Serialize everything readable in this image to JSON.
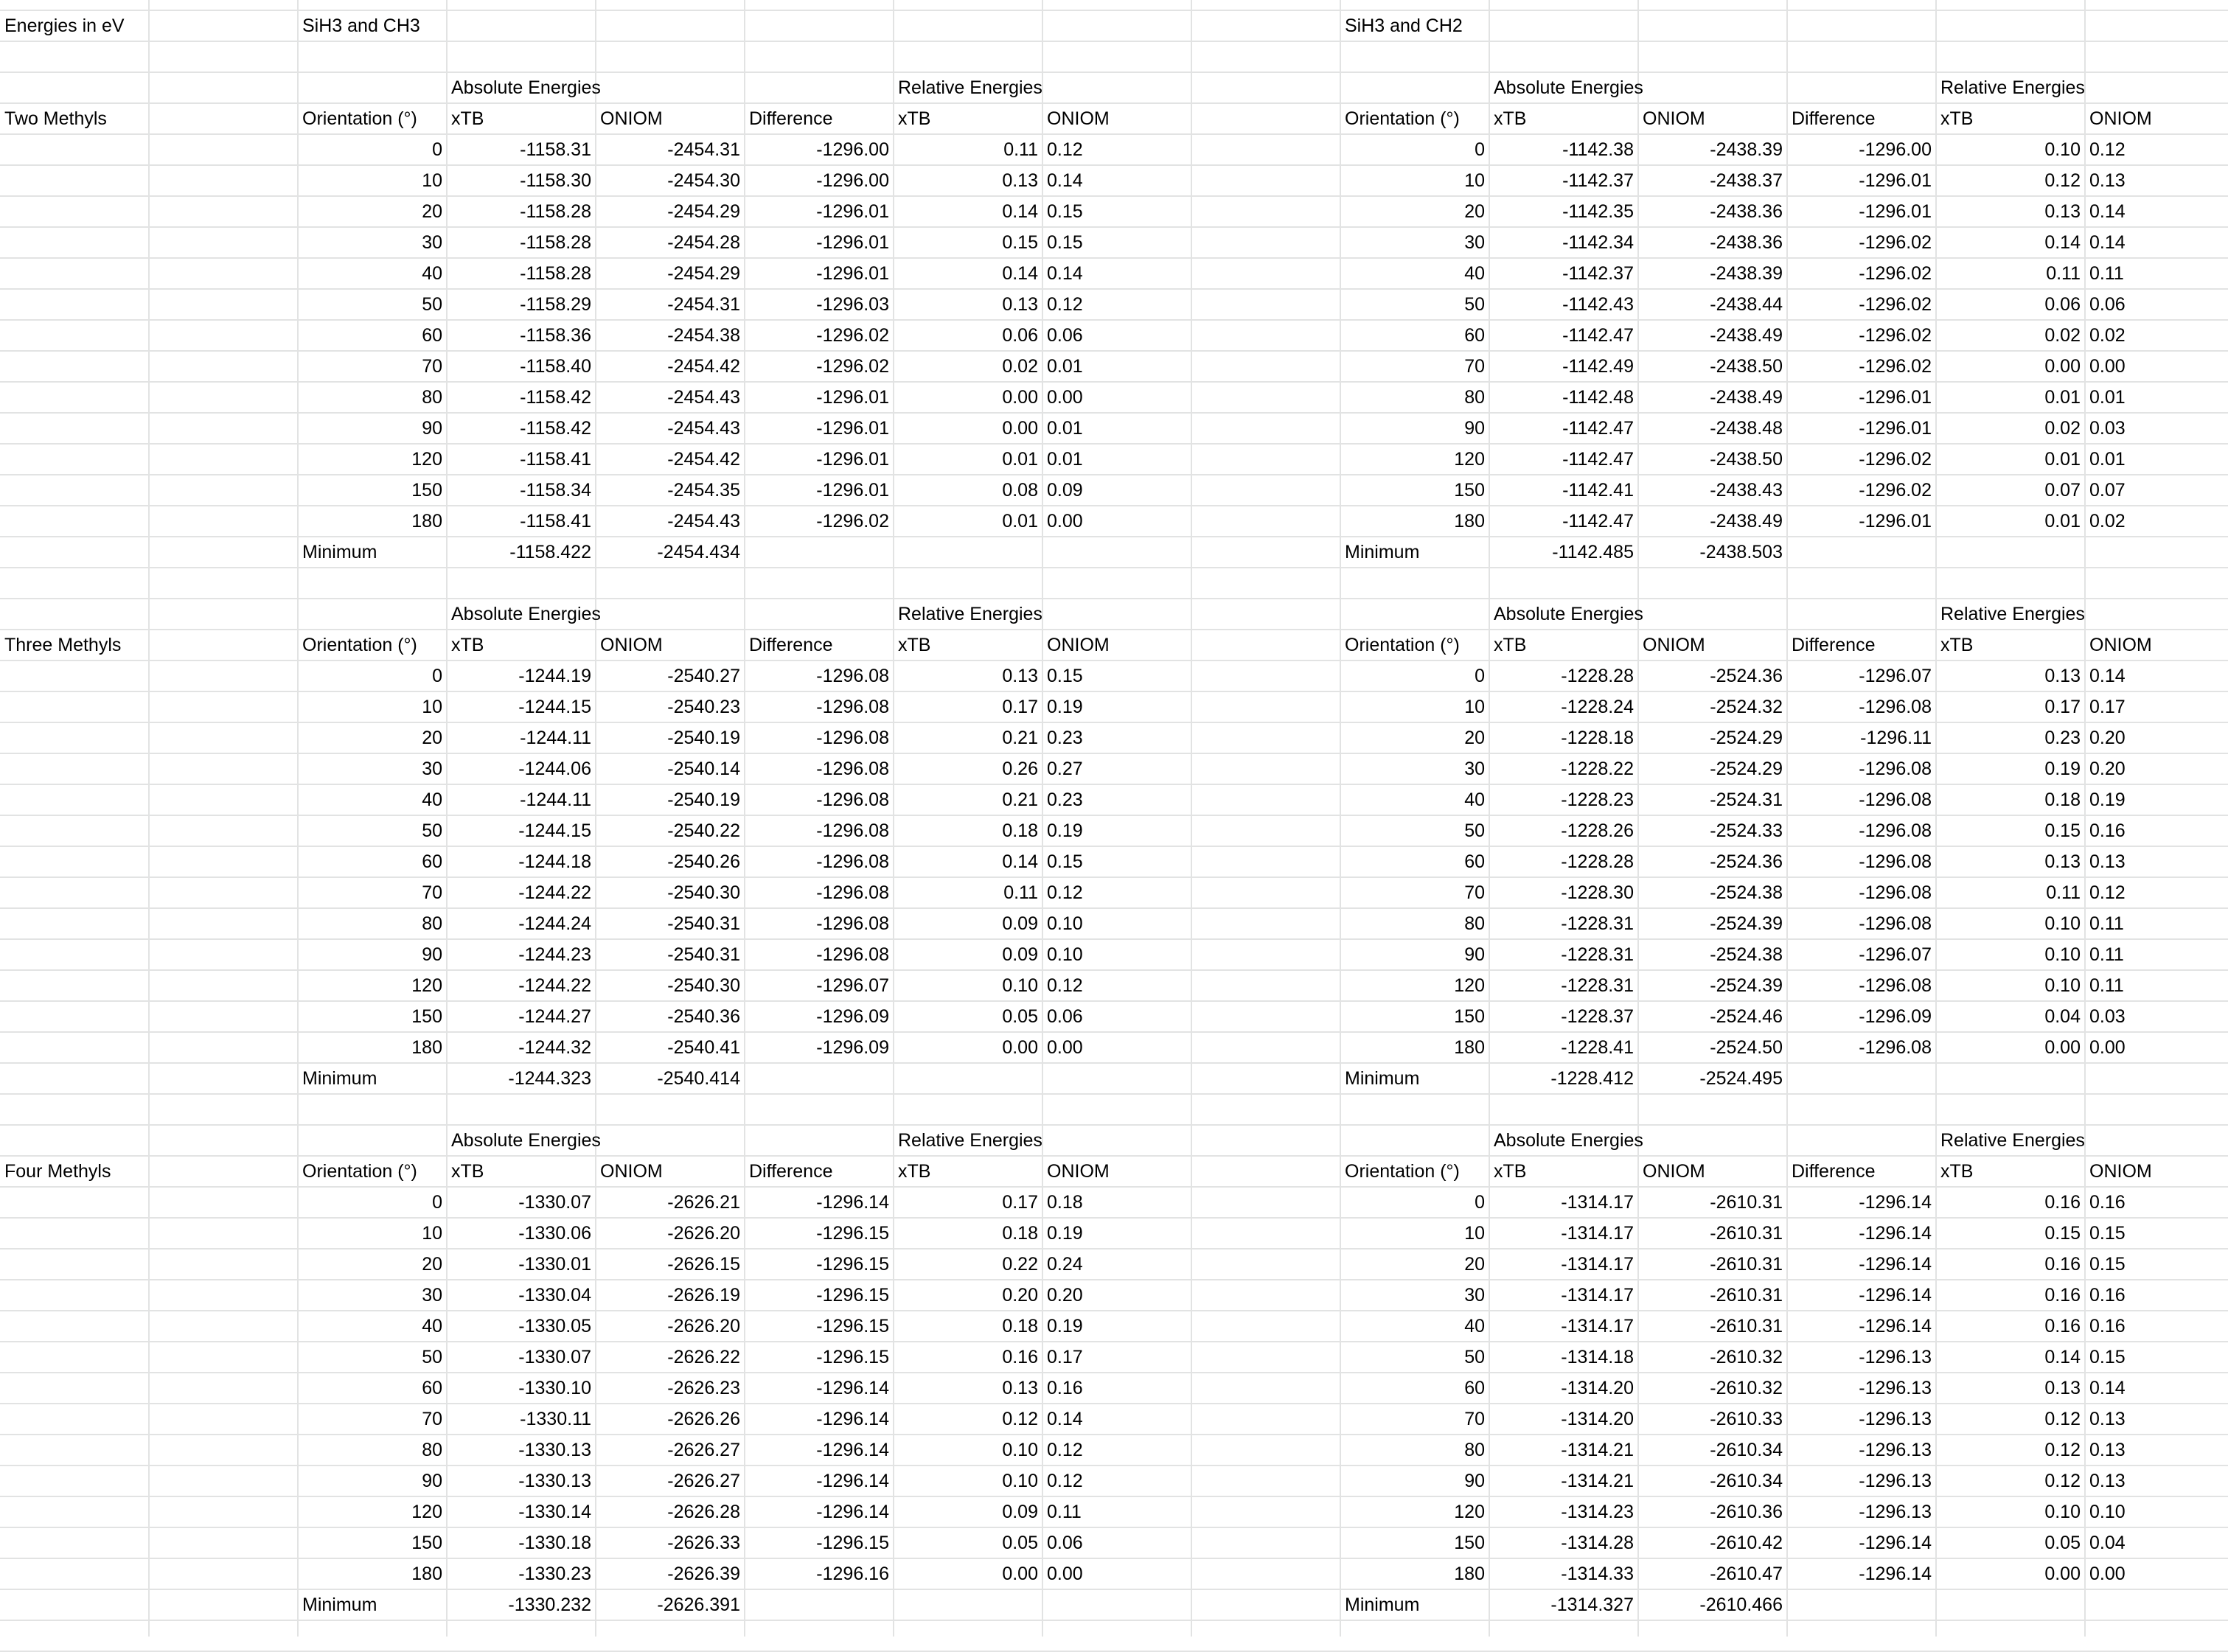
{
  "sheet": {
    "header": {
      "units": "Energies in eV",
      "left_title": "SiH3 and CH3",
      "right_title": "SiH3 and CH2"
    },
    "labels": {
      "absolute": "Absolute Energies",
      "relative": "Relative Energies",
      "orientation": "Orientation (°)",
      "xtb": "xTB",
      "oniom": "ONIOM",
      "difference": "Difference",
      "minimum": "Minimum"
    },
    "blocks": [
      {
        "name": "Two Methyls",
        "left": {
          "rows": [
            [
              "0",
              "-1158.31",
              "-2454.31",
              "-1296.00",
              "0.11",
              "0.12"
            ],
            [
              "10",
              "-1158.30",
              "-2454.30",
              "-1296.00",
              "0.13",
              "0.14"
            ],
            [
              "20",
              "-1158.28",
              "-2454.29",
              "-1296.01",
              "0.14",
              "0.15"
            ],
            [
              "30",
              "-1158.28",
              "-2454.28",
              "-1296.01",
              "0.15",
              "0.15"
            ],
            [
              "40",
              "-1158.28",
              "-2454.29",
              "-1296.01",
              "0.14",
              "0.14"
            ],
            [
              "50",
              "-1158.29",
              "-2454.31",
              "-1296.03",
              "0.13",
              "0.12"
            ],
            [
              "60",
              "-1158.36",
              "-2454.38",
              "-1296.02",
              "0.06",
              "0.06"
            ],
            [
              "70",
              "-1158.40",
              "-2454.42",
              "-1296.02",
              "0.02",
              "0.01"
            ],
            [
              "80",
              "-1158.42",
              "-2454.43",
              "-1296.01",
              "0.00",
              "0.00"
            ],
            [
              "90",
              "-1158.42",
              "-2454.43",
              "-1296.01",
              "0.00",
              "0.01"
            ],
            [
              "120",
              "-1158.41",
              "-2454.42",
              "-1296.01",
              "0.01",
              "0.01"
            ],
            [
              "150",
              "-1158.34",
              "-2454.35",
              "-1296.01",
              "0.08",
              "0.09"
            ],
            [
              "180",
              "-1158.41",
              "-2454.43",
              "-1296.02",
              "0.01",
              "0.00"
            ]
          ],
          "minimum": [
            "-1158.422",
            "-2454.434"
          ]
        },
        "right": {
          "rows": [
            [
              "0",
              "-1142.38",
              "-2438.39",
              "-1296.00",
              "0.10",
              "0.12"
            ],
            [
              "10",
              "-1142.37",
              "-2438.37",
              "-1296.01",
              "0.12",
              "0.13"
            ],
            [
              "20",
              "-1142.35",
              "-2438.36",
              "-1296.01",
              "0.13",
              "0.14"
            ],
            [
              "30",
              "-1142.34",
              "-2438.36",
              "-1296.02",
              "0.14",
              "0.14"
            ],
            [
              "40",
              "-1142.37",
              "-2438.39",
              "-1296.02",
              "0.11",
              "0.11"
            ],
            [
              "50",
              "-1142.43",
              "-2438.44",
              "-1296.02",
              "0.06",
              "0.06"
            ],
            [
              "60",
              "-1142.47",
              "-2438.49",
              "-1296.02",
              "0.02",
              "0.02"
            ],
            [
              "70",
              "-1142.49",
              "-2438.50",
              "-1296.02",
              "0.00",
              "0.00"
            ],
            [
              "80",
              "-1142.48",
              "-2438.49",
              "-1296.01",
              "0.01",
              "0.01"
            ],
            [
              "90",
              "-1142.47",
              "-2438.48",
              "-1296.01",
              "0.02",
              "0.03"
            ],
            [
              "120",
              "-1142.47",
              "-2438.50",
              "-1296.02",
              "0.01",
              "0.01"
            ],
            [
              "150",
              "-1142.41",
              "-2438.43",
              "-1296.02",
              "0.07",
              "0.07"
            ],
            [
              "180",
              "-1142.47",
              "-2438.49",
              "-1296.01",
              "0.01",
              "0.02"
            ]
          ],
          "minimum": [
            "-1142.485",
            "-2438.503"
          ]
        }
      },
      {
        "name": "Three Methyls",
        "left": {
          "rows": [
            [
              "0",
              "-1244.19",
              "-2540.27",
              "-1296.08",
              "0.13",
              "0.15"
            ],
            [
              "10",
              "-1244.15",
              "-2540.23",
              "-1296.08",
              "0.17",
              "0.19"
            ],
            [
              "20",
              "-1244.11",
              "-2540.19",
              "-1296.08",
              "0.21",
              "0.23"
            ],
            [
              "30",
              "-1244.06",
              "-2540.14",
              "-1296.08",
              "0.26",
              "0.27"
            ],
            [
              "40",
              "-1244.11",
              "-2540.19",
              "-1296.08",
              "0.21",
              "0.23"
            ],
            [
              "50",
              "-1244.15",
              "-2540.22",
              "-1296.08",
              "0.18",
              "0.19"
            ],
            [
              "60",
              "-1244.18",
              "-2540.26",
              "-1296.08",
              "0.14",
              "0.15"
            ],
            [
              "70",
              "-1244.22",
              "-2540.30",
              "-1296.08",
              "0.11",
              "0.12"
            ],
            [
              "80",
              "-1244.24",
              "-2540.31",
              "-1296.08",
              "0.09",
              "0.10"
            ],
            [
              "90",
              "-1244.23",
              "-2540.31",
              "-1296.08",
              "0.09",
              "0.10"
            ],
            [
              "120",
              "-1244.22",
              "-2540.30",
              "-1296.07",
              "0.10",
              "0.12"
            ],
            [
              "150",
              "-1244.27",
              "-2540.36",
              "-1296.09",
              "0.05",
              "0.06"
            ],
            [
              "180",
              "-1244.32",
              "-2540.41",
              "-1296.09",
              "0.00",
              "0.00"
            ]
          ],
          "minimum": [
            "-1244.323",
            "-2540.414"
          ]
        },
        "right": {
          "rows": [
            [
              "0",
              "-1228.28",
              "-2524.36",
              "-1296.07",
              "0.13",
              "0.14"
            ],
            [
              "10",
              "-1228.24",
              "-2524.32",
              "-1296.08",
              "0.17",
              "0.17"
            ],
            [
              "20",
              "-1228.18",
              "-2524.29",
              "-1296.11",
              "0.23",
              "0.20"
            ],
            [
              "30",
              "-1228.22",
              "-2524.29",
              "-1296.08",
              "0.19",
              "0.20"
            ],
            [
              "40",
              "-1228.23",
              "-2524.31",
              "-1296.08",
              "0.18",
              "0.19"
            ],
            [
              "50",
              "-1228.26",
              "-2524.33",
              "-1296.08",
              "0.15",
              "0.16"
            ],
            [
              "60",
              "-1228.28",
              "-2524.36",
              "-1296.08",
              "0.13",
              "0.13"
            ],
            [
              "70",
              "-1228.30",
              "-2524.38",
              "-1296.08",
              "0.11",
              "0.12"
            ],
            [
              "80",
              "-1228.31",
              "-2524.39",
              "-1296.08",
              "0.10",
              "0.11"
            ],
            [
              "90",
              "-1228.31",
              "-2524.38",
              "-1296.07",
              "0.10",
              "0.11"
            ],
            [
              "120",
              "-1228.31",
              "-2524.39",
              "-1296.08",
              "0.10",
              "0.11"
            ],
            [
              "150",
              "-1228.37",
              "-2524.46",
              "-1296.09",
              "0.04",
              "0.03"
            ],
            [
              "180",
              "-1228.41",
              "-2524.50",
              "-1296.08",
              "0.00",
              "0.00"
            ]
          ],
          "minimum": [
            "-1228.412",
            "-2524.495"
          ]
        }
      },
      {
        "name": "Four Methyls",
        "left": {
          "rows": [
            [
              "0",
              "-1330.07",
              "-2626.21",
              "-1296.14",
              "0.17",
              "0.18"
            ],
            [
              "10",
              "-1330.06",
              "-2626.20",
              "-1296.15",
              "0.18",
              "0.19"
            ],
            [
              "20",
              "-1330.01",
              "-2626.15",
              "-1296.15",
              "0.22",
              "0.24"
            ],
            [
              "30",
              "-1330.04",
              "-2626.19",
              "-1296.15",
              "0.20",
              "0.20"
            ],
            [
              "40",
              "-1330.05",
              "-2626.20",
              "-1296.15",
              "0.18",
              "0.19"
            ],
            [
              "50",
              "-1330.07",
              "-2626.22",
              "-1296.15",
              "0.16",
              "0.17"
            ],
            [
              "60",
              "-1330.10",
              "-2626.23",
              "-1296.14",
              "0.13",
              "0.16"
            ],
            [
              "70",
              "-1330.11",
              "-2626.26",
              "-1296.14",
              "0.12",
              "0.14"
            ],
            [
              "80",
              "-1330.13",
              "-2626.27",
              "-1296.14",
              "0.10",
              "0.12"
            ],
            [
              "90",
              "-1330.13",
              "-2626.27",
              "-1296.14",
              "0.10",
              "0.12"
            ],
            [
              "120",
              "-1330.14",
              "-2626.28",
              "-1296.14",
              "0.09",
              "0.11"
            ],
            [
              "150",
              "-1330.18",
              "-2626.33",
              "-1296.15",
              "0.05",
              "0.06"
            ],
            [
              "180",
              "-1330.23",
              "-2626.39",
              "-1296.16",
              "0.00",
              "0.00"
            ]
          ],
          "minimum": [
            "-1330.232",
            "-2626.391"
          ]
        },
        "right": {
          "rows": [
            [
              "0",
              "-1314.17",
              "-2610.31",
              "-1296.14",
              "0.16",
              "0.16"
            ],
            [
              "10",
              "-1314.17",
              "-2610.31",
              "-1296.14",
              "0.15",
              "0.15"
            ],
            [
              "20",
              "-1314.17",
              "-2610.31",
              "-1296.14",
              "0.16",
              "0.15"
            ],
            [
              "30",
              "-1314.17",
              "-2610.31",
              "-1296.14",
              "0.16",
              "0.16"
            ],
            [
              "40",
              "-1314.17",
              "-2610.31",
              "-1296.14",
              "0.16",
              "0.16"
            ],
            [
              "50",
              "-1314.18",
              "-2610.32",
              "-1296.13",
              "0.14",
              "0.15"
            ],
            [
              "60",
              "-1314.20",
              "-2610.32",
              "-1296.13",
              "0.13",
              "0.14"
            ],
            [
              "70",
              "-1314.20",
              "-2610.33",
              "-1296.13",
              "0.12",
              "0.13"
            ],
            [
              "80",
              "-1314.21",
              "-2610.34",
              "-1296.13",
              "0.12",
              "0.13"
            ],
            [
              "90",
              "-1314.21",
              "-2610.34",
              "-1296.13",
              "0.12",
              "0.13"
            ],
            [
              "120",
              "-1314.23",
              "-2610.36",
              "-1296.13",
              "0.10",
              "0.10"
            ],
            [
              "150",
              "-1314.28",
              "-2610.42",
              "-1296.14",
              "0.05",
              "0.04"
            ],
            [
              "180",
              "-1314.33",
              "-2610.47",
              "-1296.14",
              "0.00",
              "0.00"
            ]
          ],
          "minimum": [
            "-1314.327",
            "-2610.466"
          ]
        }
      }
    ]
  }
}
